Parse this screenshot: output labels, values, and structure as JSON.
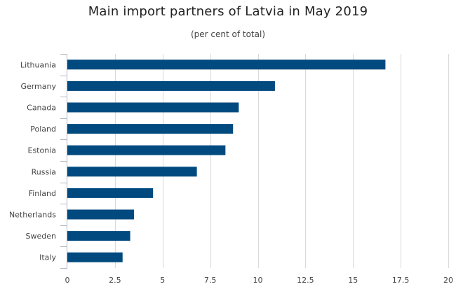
{
  "chart_data": {
    "type": "bar",
    "orientation": "horizontal",
    "title": "Main import partners of Latvia in May 2019",
    "subtitle": "(per cent of total)",
    "xlabel": "",
    "ylabel": "",
    "categories": [
      "Lithuania",
      "Germany",
      "Canada",
      "Poland",
      "Estonia",
      "Russia",
      "Finland",
      "Netherlands",
      "Sweden",
      "Italy"
    ],
    "values": [
      16.7,
      10.9,
      9.0,
      8.7,
      8.3,
      6.8,
      4.5,
      3.5,
      3.3,
      2.9
    ],
    "xlim": [
      0,
      20
    ],
    "xticks": [
      "0",
      "2.5",
      "5",
      "7.5",
      "10",
      "12.5",
      "15",
      "17.5",
      "20"
    ],
    "grid": true,
    "legend": "none",
    "bar_color": "#004a7f",
    "grid_color": "#d9d9d9",
    "axis_color": "#b0b8c4"
  }
}
